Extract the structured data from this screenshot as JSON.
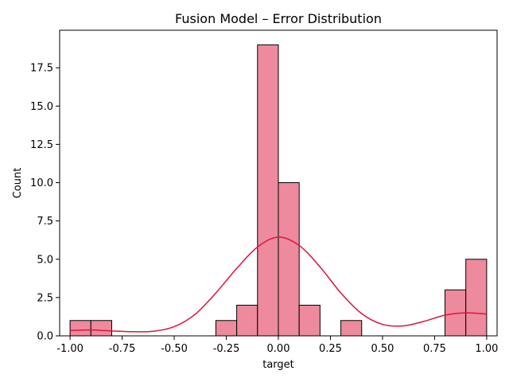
{
  "chart_data": {
    "type": "bar",
    "title": "Fusion Model – Error Distribution",
    "xlabel": "target",
    "ylabel": "Count",
    "xlim": [
      -1.05,
      1.05
    ],
    "ylim": [
      0,
      19.95
    ],
    "xticks": [
      "-1.00",
      "-0.75",
      "-0.50",
      "-0.25",
      "0.00",
      "0.25",
      "0.50",
      "0.75",
      "1.00"
    ],
    "yticks": [
      "0.0",
      "2.5",
      "5.0",
      "7.5",
      "10.0",
      "12.5",
      "15.0",
      "17.5"
    ],
    "bin_edges": [
      -1.0,
      -0.9,
      -0.8,
      -0.7,
      -0.6,
      -0.5,
      -0.4,
      -0.3,
      -0.2,
      -0.1,
      0.0,
      0.1,
      0.2,
      0.3,
      0.4,
      0.5,
      0.6,
      0.7,
      0.8,
      0.9,
      1.0
    ],
    "counts": [
      1,
      1,
      0,
      0,
      0,
      0,
      0,
      1,
      2,
      19,
      10,
      2,
      0,
      1,
      0,
      0,
      0,
      0,
      3,
      5
    ],
    "kde": {
      "x": [
        -1.0,
        -0.9,
        -0.8,
        -0.7,
        -0.6,
        -0.5,
        -0.4,
        -0.3,
        -0.2,
        -0.1,
        0.0,
        0.1,
        0.2,
        0.3,
        0.4,
        0.5,
        0.6,
        0.7,
        0.8,
        0.9,
        1.0
      ],
      "y": [
        0.35,
        0.38,
        0.32,
        0.27,
        0.3,
        0.6,
        1.4,
        2.8,
        4.4,
        5.8,
        6.45,
        5.9,
        4.5,
        2.8,
        1.45,
        0.75,
        0.65,
        0.95,
        1.35,
        1.5,
        1.42
      ]
    },
    "bar_color": "#ee8a9d",
    "bar_edge_color": "#000000",
    "kde_color": "#dc143c",
    "grid": false,
    "legend": false
  }
}
